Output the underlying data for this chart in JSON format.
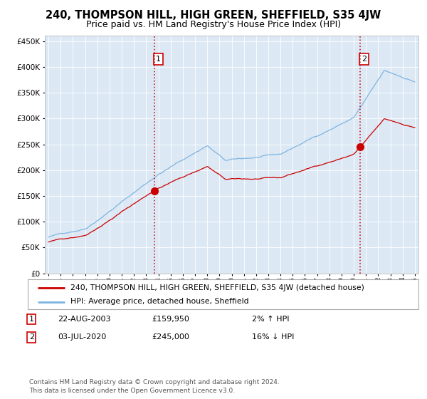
{
  "title": "240, THOMPSON HILL, HIGH GREEN, SHEFFIELD, S35 4JW",
  "subtitle": "Price paid vs. HM Land Registry's House Price Index (HPI)",
  "title_fontsize": 10.5,
  "subtitle_fontsize": 9,
  "bg_color": "#dce9f5",
  "hpi_color": "#7fb4e0",
  "price_color": "#cc0000",
  "marker_color": "#cc0000",
  "vline1_color": "#cc0000",
  "vline2_color": "#cc0000",
  "purchase1_year": 2003.65,
  "purchase1_price": 159950,
  "purchase2_year": 2020.5,
  "purchase2_price": 245000,
  "ylabel_start": 0,
  "ylabel_end": 450000,
  "ylabel_step": 50000,
  "xstart": 1995,
  "xend": 2025,
  "legend_line1": "240, THOMPSON HILL, HIGH GREEN, SHEFFIELD, S35 4JW (detached house)",
  "legend_line2": "HPI: Average price, detached house, Sheffield",
  "note1_date": "22-AUG-2003",
  "note1_price": "£159,950",
  "note1_hpi": "2% ↑ HPI",
  "note2_date": "03-JUL-2020",
  "note2_price": "£245,000",
  "note2_hpi": "16% ↓ HPI",
  "footer": "Contains HM Land Registry data © Crown copyright and database right 2024.\nThis data is licensed under the Open Government Licence v3.0."
}
